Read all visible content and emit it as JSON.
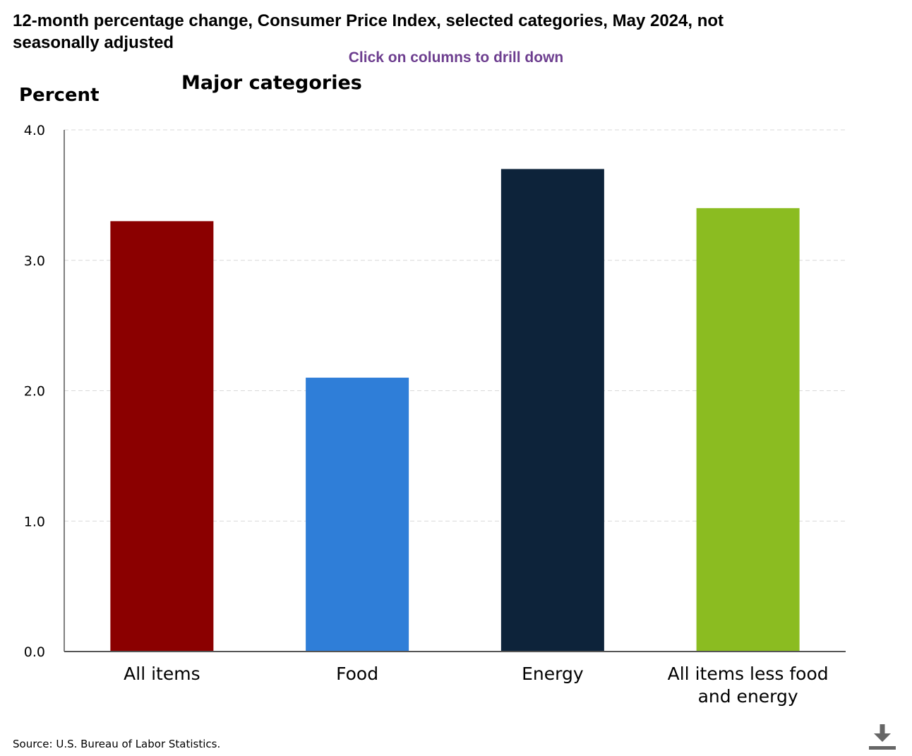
{
  "header": {
    "title": "12-month percentage change, Consumer Price Index, selected categories, May 2024, not seasonally adjusted",
    "drill_hint": "Click on columns to drill down"
  },
  "footer": {
    "source": "Source: U.S. Bureau of Labor Statistics.",
    "download_icon": "download-icon"
  },
  "chart_data": {
    "type": "bar",
    "title": "12-month percentage change, Consumer Price Index, selected categories, May 2024, not seasonally adjusted",
    "subtitle": "Major categories",
    "xlabel": "",
    "ylabel": "Percent",
    "ylim": [
      0,
      4
    ],
    "yticks": [
      "0.0",
      "1.0",
      "2.0",
      "3.0",
      "4.0"
    ],
    "grid": true,
    "legend": "none",
    "categories": [
      [
        "All items"
      ],
      [
        "Food"
      ],
      [
        "Energy"
      ],
      [
        "All items less food",
        "and energy"
      ]
    ],
    "values": [
      3.3,
      2.1,
      3.7,
      3.4
    ],
    "colors": [
      "#8b0000",
      "#2f7ed8",
      "#0d233a",
      "#8bbc21"
    ]
  }
}
